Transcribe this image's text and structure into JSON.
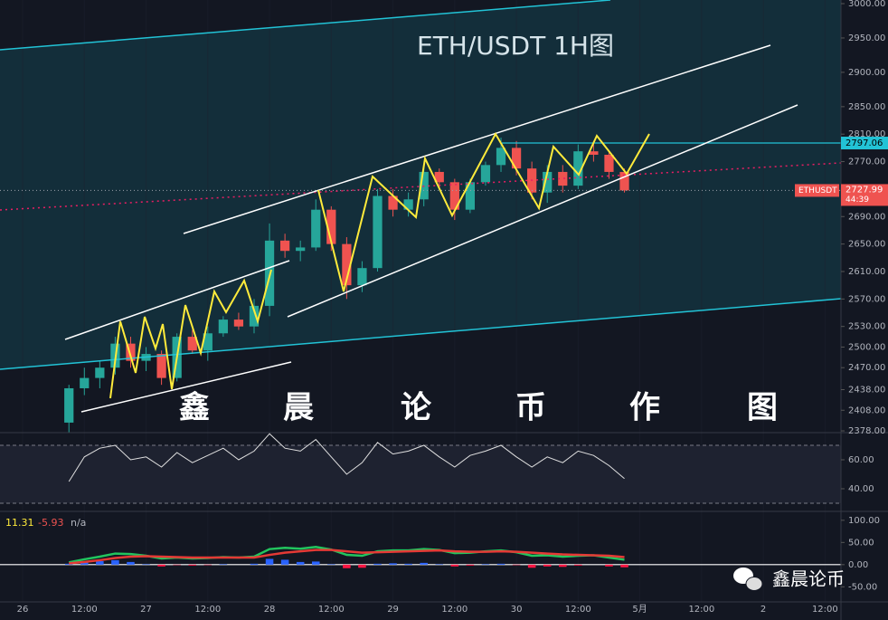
{
  "title": "ETH/USDT   1H图",
  "watermark": [
    "鑫",
    "晨",
    "论",
    "币",
    "作",
    "图"
  ],
  "brand": "鑫晨论币",
  "chart_data": [
    {
      "type": "candlestick",
      "symbol": "ETHUSDT",
      "x": [
        9,
        12,
        15,
        18,
        21,
        24,
        27,
        30,
        33,
        36,
        39,
        42,
        45,
        48,
        51,
        54,
        57,
        60,
        63,
        66,
        69,
        72,
        75,
        78,
        81,
        84,
        87,
        90,
        93,
        96,
        99,
        102,
        105,
        108,
        111,
        114,
        117
      ],
      "open": [
        2390,
        2440,
        2455,
        2470,
        2505,
        2480,
        2490,
        2455,
        2515,
        2495,
        2520,
        2540,
        2530,
        2560,
        2655,
        2640,
        2645,
        2700,
        2650,
        2590,
        2615,
        2720,
        2700,
        2715,
        2755,
        2740,
        2700,
        2740,
        2765,
        2790,
        2760,
        2725,
        2755,
        2735,
        2785,
        2780,
        2755
      ],
      "high": [
        2445,
        2470,
        2480,
        2515,
        2515,
        2500,
        2495,
        2520,
        2525,
        2530,
        2545,
        2550,
        2570,
        2680,
        2665,
        2655,
        2715,
        2705,
        2660,
        2625,
        2730,
        2730,
        2725,
        2765,
        2760,
        2745,
        2745,
        2770,
        2805,
        2800,
        2770,
        2765,
        2765,
        2795,
        2800,
        2785,
        2760
      ],
      "low": [
        2375,
        2430,
        2440,
        2460,
        2470,
        2465,
        2445,
        2450,
        2490,
        2480,
        2515,
        2525,
        2520,
        2545,
        2630,
        2625,
        2640,
        2640,
        2570,
        2580,
        2610,
        2690,
        2690,
        2705,
        2730,
        2685,
        2695,
        2735,
        2755,
        2750,
        2715,
        2710,
        2725,
        2730,
        2770,
        2745,
        2725
      ],
      "close": [
        2440,
        2455,
        2470,
        2505,
        2480,
        2490,
        2455,
        2515,
        2495,
        2520,
        2540,
        2530,
        2560,
        2655,
        2640,
        2645,
        2700,
        2650,
        2590,
        2615,
        2720,
        2700,
        2715,
        2755,
        2740,
        2700,
        2740,
        2765,
        2790,
        2760,
        2725,
        2755,
        2735,
        2785,
        2780,
        2755,
        2728
      ],
      "up_color": "#26a69a",
      "down_color": "#ef5350",
      "xlim": [
        -4.4,
        159.1
      ],
      "xticks": [
        {
          "value": 0,
          "label": "26"
        },
        {
          "value": 12,
          "label": "12:00"
        },
        {
          "value": 24,
          "label": "27"
        },
        {
          "value": 36,
          "label": "12:00"
        },
        {
          "value": 48,
          "label": "28"
        },
        {
          "value": 60,
          "label": "12:00"
        },
        {
          "value": 72,
          "label": "29"
        },
        {
          "value": 84,
          "label": "12:00"
        },
        {
          "value": 96,
          "label": "30"
        },
        {
          "value": 108,
          "label": "12:00"
        },
        {
          "value": 120,
          "label": "5月"
        },
        {
          "value": 132,
          "label": "12:00"
        },
        {
          "value": 144,
          "label": "2"
        },
        {
          "value": 156,
          "label": "12:00"
        }
      ],
      "ylim": [
        2375.4,
        3005.3
      ],
      "yticks": [
        {
          "value": 3000,
          "label": "3000.00"
        },
        {
          "value": 2950,
          "label": "2950.00"
        },
        {
          "value": 2900,
          "label": "2900.00"
        },
        {
          "value": 2850,
          "label": "2850.00"
        },
        {
          "value": 2810,
          "label": "2810.00"
        },
        {
          "value": 2770,
          "label": "2770.00"
        },
        {
          "value": 2690,
          "label": "2690.00"
        },
        {
          "value": 2650,
          "label": "2650.00"
        },
        {
          "value": 2610,
          "label": "2610.00"
        },
        {
          "value": 2570,
          "label": "2570.00"
        },
        {
          "value": 2530,
          "label": "2530.00"
        },
        {
          "value": 2500,
          "label": "2500.00"
        },
        {
          "value": 2470,
          "label": "2470.00"
        },
        {
          "value": 2438,
          "label": "2438.00"
        },
        {
          "value": 2408,
          "label": "2408.00"
        },
        {
          "value": 2378,
          "label": "2378.00"
        }
      ],
      "resistance": 2797.06,
      "last_price": 2727.99,
      "countdown": "44:39"
    },
    {
      "type": "line",
      "color": "#e0e0e0",
      "values": [
        45,
        62,
        68,
        70,
        60,
        62,
        55,
        65,
        58,
        63,
        68,
        60,
        66,
        78,
        68,
        66,
        74,
        62,
        50,
        58,
        72,
        64,
        66,
        70,
        62,
        55,
        63,
        66,
        70,
        62,
        55,
        62,
        58,
        66,
        63,
        56,
        47
      ],
      "bands": [
        70,
        30
      ],
      "ylim": [
        25.6,
        78.75
      ],
      "yticks": [
        {
          "value": 60,
          "label": "60.00"
        },
        {
          "value": 40,
          "label": "40.00"
        }
      ]
    },
    {
      "type": "macd",
      "header": [
        11.31,
        -5.93,
        "n/a"
      ],
      "series": [
        {
          "color": "#22c55e",
          "values": [
            5,
            12,
            18,
            25,
            24,
            20,
            14,
            16,
            14,
            15,
            17,
            16,
            18,
            35,
            38,
            36,
            40,
            34,
            22,
            20,
            30,
            32,
            32,
            35,
            33,
            26,
            27,
            30,
            32,
            28,
            20,
            21,
            18,
            20,
            21,
            16,
            11
          ]
        },
        {
          "color": "#e53935",
          "values": [
            3,
            6,
            10,
            15,
            18,
            19,
            18,
            17,
            16,
            16,
            16,
            16,
            16,
            22,
            27,
            30,
            33,
            33,
            30,
            27,
            28,
            29,
            30,
            31,
            32,
            30,
            29,
            29,
            30,
            29,
            27,
            25,
            23,
            22,
            21,
            20,
            17
          ]
        }
      ],
      "histogram": [
        2,
        6,
        8,
        10,
        6,
        1,
        -4,
        -1,
        -2,
        -1,
        1,
        0,
        2,
        13,
        11,
        6,
        7,
        1,
        -8,
        -7,
        2,
        3,
        2,
        4,
        1,
        -4,
        -2,
        1,
        2,
        -1,
        -7,
        -4,
        -5,
        -2,
        0,
        -4,
        -6
      ],
      "hist_colors": [
        "#2962ff",
        "#ff1744"
      ],
      "ylim": [
        -84,
        118
      ],
      "yticks": [
        {
          "value": 100,
          "label": "100.00"
        },
        {
          "value": 50,
          "label": "50.00"
        },
        {
          "value": 0,
          "label": "0.00"
        },
        {
          "value": -50,
          "label": "-50.00"
        }
      ]
    }
  ]
}
